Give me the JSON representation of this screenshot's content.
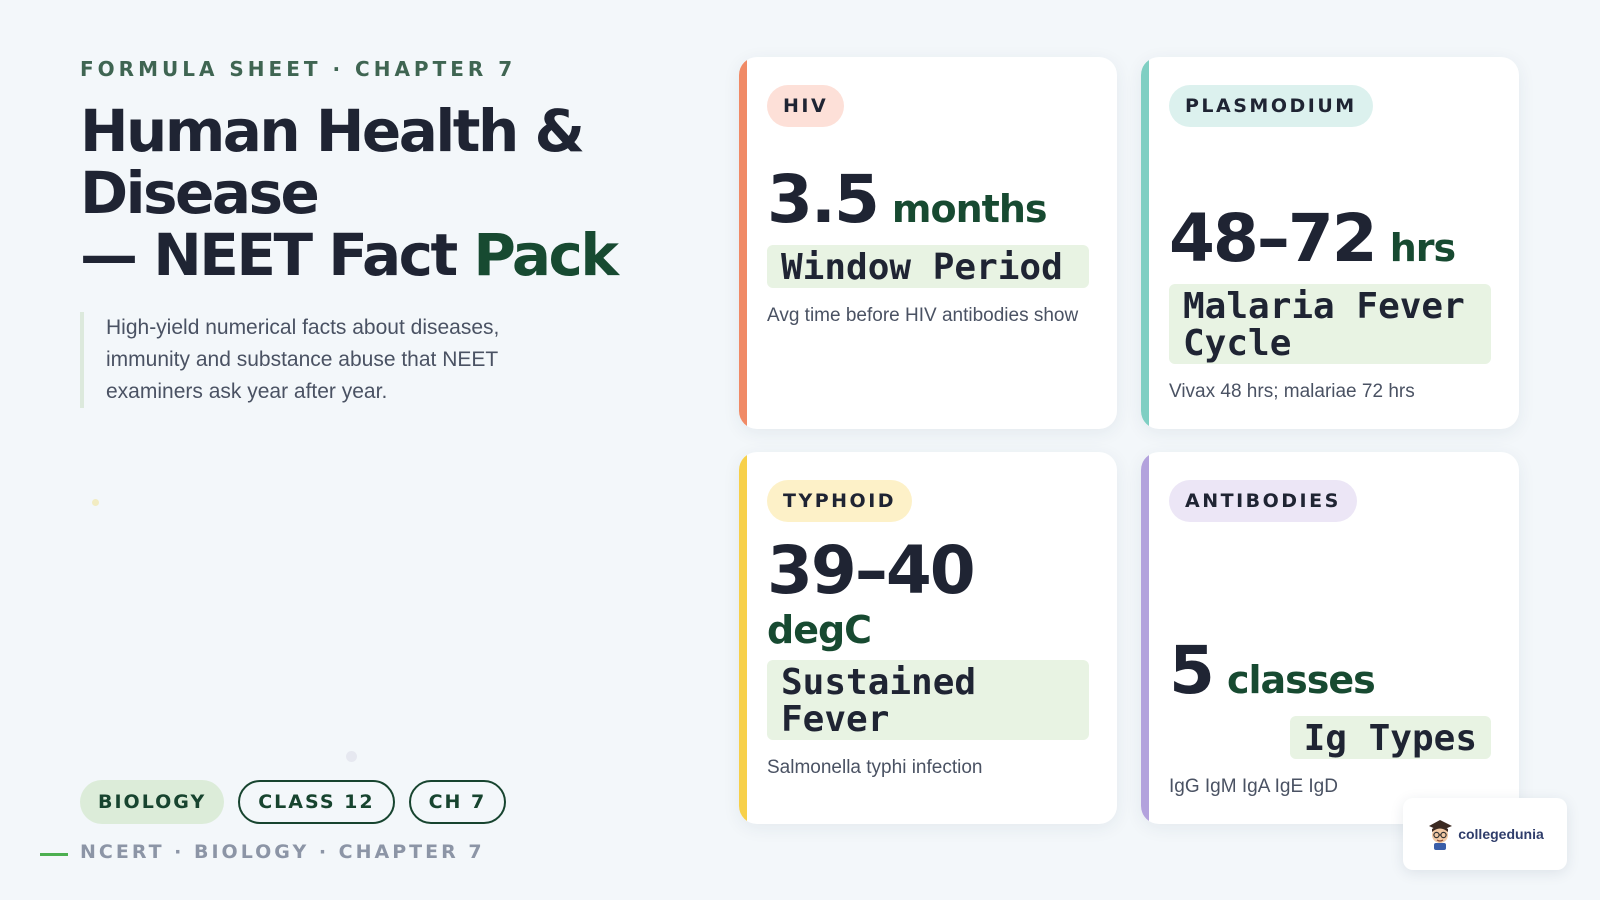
{
  "header": {
    "eyebrow": "FORMULA SHEET · CHAPTER 7",
    "title_line1": "Human Health &",
    "title_line2": "Disease",
    "title_line3_main": "— NEET Fact ",
    "title_line3_accent": "Pack",
    "description": "High-yield numerical facts about diseases, immunity and substance abuse that NEET examiners ask year after year."
  },
  "tags": [
    {
      "label": "BIOLOGY",
      "style": "filled"
    },
    {
      "label": "CLASS 12",
      "style": "outline"
    },
    {
      "label": "CH 7",
      "style": "outline"
    }
  ],
  "footer": {
    "text": "NCERT · BIOLOGY · CHAPTER 7"
  },
  "cards": [
    {
      "badge": "HIV",
      "value": "3.5",
      "unit": "months",
      "label": "Window Period",
      "note": "Avg time before HIV antibodies show",
      "accent_color": "#f08a66",
      "badge_bg": "#fde0d8"
    },
    {
      "badge": "PLASMODIUM",
      "value": "48–72",
      "unit": "hrs",
      "label": "Malaria Fever Cycle",
      "note": "Vivax 48 hrs; malariae 72 hrs",
      "accent_color": "#7fcfc3",
      "badge_bg": "#dcf1ee"
    },
    {
      "badge": "TYPHOID",
      "value": "39–40",
      "unit": "degC",
      "label": "Sustained Fever",
      "note": "Salmonella typhi infection",
      "accent_color": "#f7d04a",
      "badge_bg": "#fdf1c8"
    },
    {
      "badge": "ANTIBODIES",
      "value": "5",
      "unit": "classes",
      "label": "Ig Types",
      "note": "IgG IgM IgA IgE IgD",
      "accent_color": "#b3a2dd",
      "badge_bg": "#ece6f6"
    }
  ],
  "logo": {
    "text": "collegedunia",
    "icon": "student-mascot-icon"
  }
}
